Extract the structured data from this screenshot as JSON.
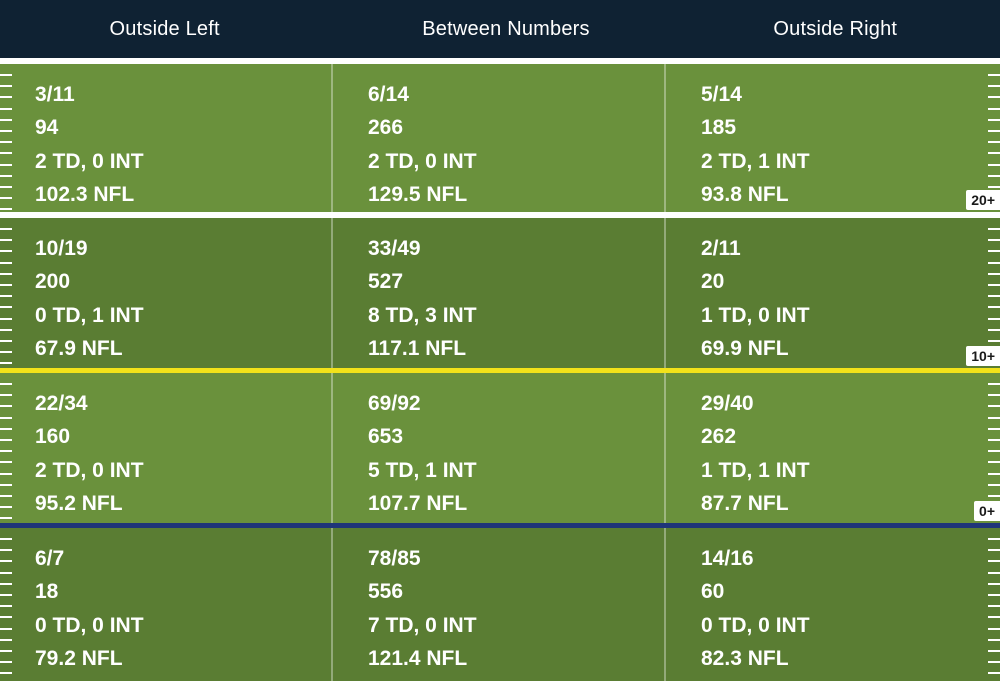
{
  "columns": [
    "Outside Left",
    "Between Numbers",
    "Outside Right"
  ],
  "bands": [
    {
      "shade": "light",
      "yard_label": "20+",
      "cells": [
        [
          "3/11",
          "94",
          "2 TD, 0 INT",
          "102.3 NFL"
        ],
        [
          "6/14",
          "266",
          "2 TD, 0 INT",
          "129.5 NFL"
        ],
        [
          "5/14",
          "185",
          "2 TD, 1 INT",
          "93.8 NFL"
        ]
      ]
    },
    {
      "shade": "dark",
      "yard_label": "10+",
      "cells": [
        [
          "10/19",
          "200",
          "0 TD, 1 INT",
          "67.9 NFL"
        ],
        [
          "33/49",
          "527",
          "8 TD, 3 INT",
          "117.1 NFL"
        ],
        [
          "2/11",
          "20",
          "1 TD, 0 INT",
          "69.9 NFL"
        ]
      ]
    },
    {
      "shade": "light",
      "yard_label": "0+",
      "cells": [
        [
          "22/34",
          "160",
          "2 TD, 0 INT",
          "95.2 NFL"
        ],
        [
          "69/92",
          "653",
          "5 TD, 1 INT",
          "107.7 NFL"
        ],
        [
          "29/40",
          "262",
          "1 TD, 1 INT",
          "87.7 NFL"
        ]
      ]
    },
    {
      "shade": "dark",
      "yard_label": "",
      "cells": [
        [
          "6/7",
          "18",
          "0 TD, 0 INT",
          "79.2 NFL"
        ],
        [
          "78/85",
          "556",
          "7 TD, 0 INT",
          "121.4 NFL"
        ],
        [
          "14/16",
          "60",
          "0 TD, 0 INT",
          "82.3 NFL"
        ]
      ]
    }
  ],
  "colors": {
    "header_bg": "#0f2233",
    "field_light": "#6a913c",
    "field_dark": "#5a7d33",
    "line_20": "#ffffff",
    "line_10": "#f2e21a",
    "line_0": "#1f3579"
  }
}
